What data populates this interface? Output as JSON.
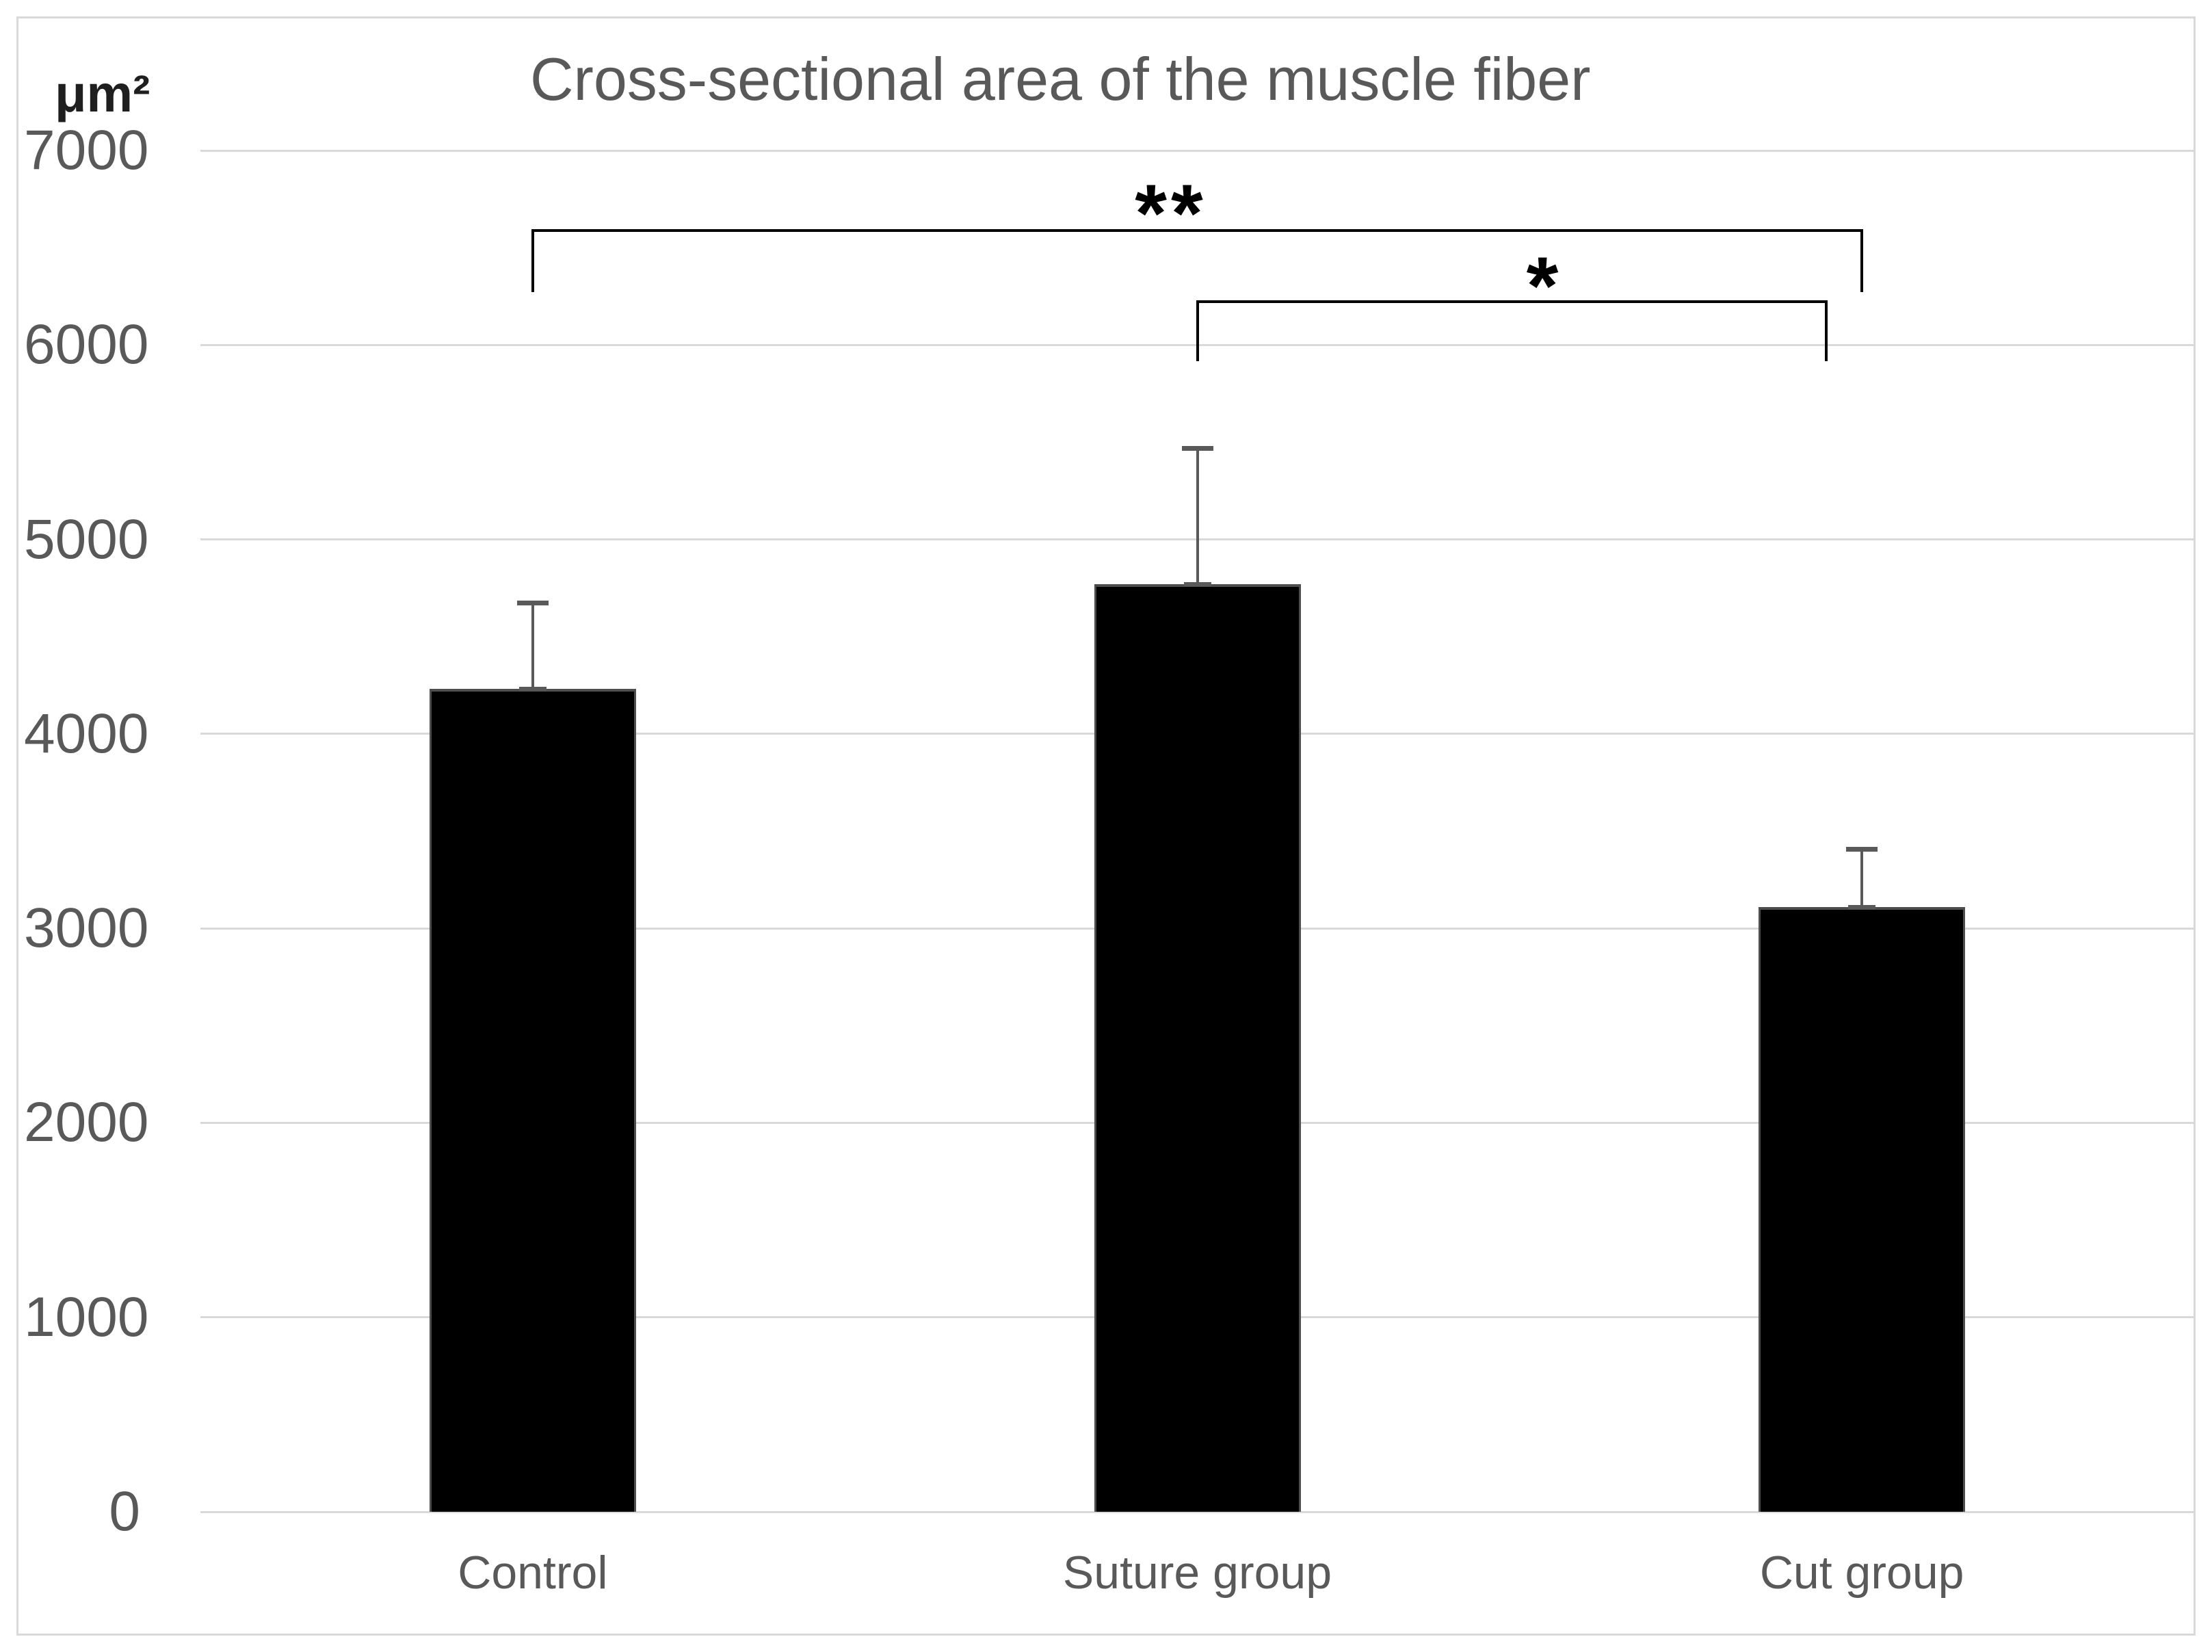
{
  "figure": {
    "title": "Cross-sectional area of the muscle fiber",
    "unit_label": "μm²"
  },
  "chart_data": {
    "type": "bar",
    "title": "Cross-sectional area of the muscle fiber",
    "ylabel_unit": "μm²",
    "categories": [
      "Control",
      "Suture group",
      "Cut group"
    ],
    "series": [
      {
        "name": "Cross-sectional area",
        "values": [
          4230,
          4770,
          3110
        ],
        "error_plus": [
          445,
          700,
          300
        ]
      }
    ],
    "ylim": [
      0,
      7000
    ],
    "ytick_step": 1000,
    "ytick_labels": [
      "0",
      "1000",
      "2000",
      "3000",
      "4000",
      "5000",
      "6000",
      "7000"
    ],
    "grid": true,
    "legend": "none",
    "annotations": [
      {
        "type": "significance-bracket",
        "between": [
          "Control",
          "Cut group"
        ],
        "label": "**"
      },
      {
        "type": "significance-bracket",
        "between": [
          "Suture group",
          "Cut group"
        ],
        "label": "*"
      }
    ]
  },
  "colors": {
    "background": "#ffffff",
    "frame_border": "#d9d9d9",
    "gridline": "#d9d9d9",
    "text_gray": "#595959",
    "unit_text": "#1f1f1f",
    "bar_fill": "#000000",
    "bar_outline": "#4d4d4d",
    "error_bar": "#595959",
    "bracket": "#000000"
  }
}
